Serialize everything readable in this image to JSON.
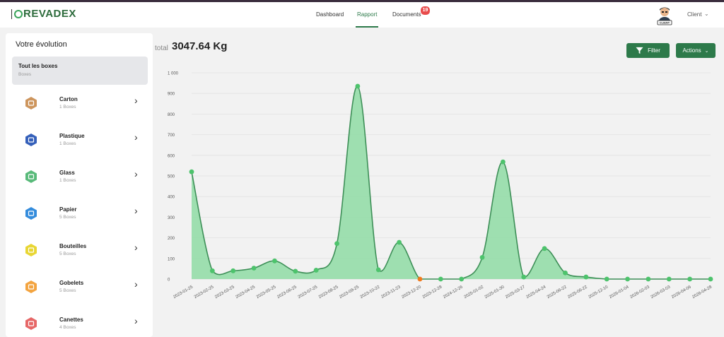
{
  "header": {
    "logo_text": "REVADEX",
    "nav": [
      {
        "label": "Dashboard"
      },
      {
        "label": "Rapport"
      },
      {
        "label": "Documents"
      }
    ],
    "documents_badge": "19",
    "avatar_label": "CLIENT",
    "user_menu": "Client"
  },
  "sidebar": {
    "title": "Votre évolution",
    "all": {
      "label": "Tout les boxes",
      "sub": "Boxes"
    },
    "categories": [
      {
        "label": "Carton",
        "count": "1 Boxes",
        "icon": "carton-icon",
        "color": "#c88a4b"
      },
      {
        "label": "Plastique",
        "count": "1 Boxes",
        "icon": "plastic-icon",
        "color": "#1f4fb3"
      },
      {
        "label": "Glass",
        "count": "1 Boxes",
        "icon": "glass-icon",
        "color": "#47b36b"
      },
      {
        "label": "Papier",
        "count": "5 Boxes",
        "icon": "paper-icon",
        "color": "#1e7fd8"
      },
      {
        "label": "Bouteilles",
        "count": "5 Boxes",
        "icon": "bottle-icon",
        "color": "#e6d21e"
      },
      {
        "label": "Gobelets",
        "count": "5 Boxes",
        "icon": "cup-icon",
        "color": "#f29a2b"
      },
      {
        "label": "Canettes",
        "count": "4 Boxes",
        "icon": "can-icon",
        "color": "#e35656"
      }
    ]
  },
  "main": {
    "total_label": "total",
    "total_value": "3047.64 Kg",
    "filter_label": "Filter",
    "actions_label": "Actions"
  },
  "chart_data": {
    "type": "area",
    "title": "",
    "xlabel": "",
    "ylabel": "",
    "ylim": [
      0,
      1000
    ],
    "yticks": [
      "0",
      "100",
      "200",
      "300",
      "400",
      "500",
      "600",
      "700",
      "800",
      "900",
      "1 000"
    ],
    "x": [
      "2023-01-25",
      "2023-02-25",
      "2023-03-25",
      "2023-04-25",
      "2023-05-25",
      "2023-06-25",
      "2023-07-25",
      "2023-08-25",
      "2023-09-25",
      "2023-10-22",
      "2023-11-23",
      "2023-12-20",
      "2023-12-28",
      "2024-12-26",
      "2025-01-02",
      "2025-01-30",
      "2025-03-27",
      "2025-04-24",
      "2025-06-22",
      "2025-06-22",
      "2025-12-10",
      "2026-01-04",
      "2026-02-03",
      "2026-03-03",
      "2026-04-06",
      "2026-04-28"
    ],
    "values": [
      520,
      40,
      40,
      53,
      88,
      38,
      43,
      172,
      935,
      45,
      178,
      0,
      0,
      0,
      105,
      568,
      10,
      148,
      30,
      10,
      0,
      0,
      0,
      0,
      0,
      0
    ],
    "highlight_index": 11,
    "line_color": "#3d8f57",
    "fill_color": "#8fdca5",
    "point_color": "#4dc36c",
    "highlight_color": "#f07b1f"
  }
}
